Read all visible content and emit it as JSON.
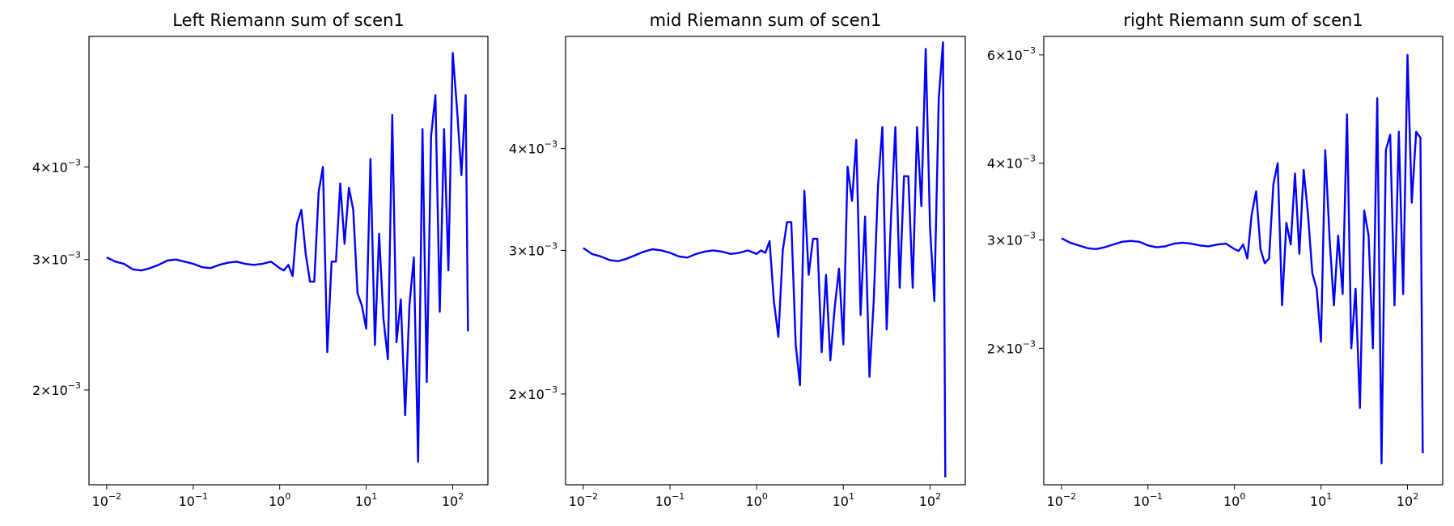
{
  "chart_data": [
    {
      "type": "line",
      "title": "Left Riemann sum of scen1",
      "color": "blue",
      "xscale": "log",
      "yscale": "log",
      "xlim": [
        0.00625,
        255
      ],
      "ylim": [
        0.00149,
        0.006
      ],
      "xticks": [
        {
          "value": 0.01,
          "label": "10",
          "exponent": "−2"
        },
        {
          "value": 0.1,
          "label": "10",
          "exponent": "−1"
        },
        {
          "value": 1,
          "label": "10",
          "exponent": "0"
        },
        {
          "value": 10,
          "label": "10",
          "exponent": "1"
        },
        {
          "value": 100,
          "label": "10",
          "exponent": "2"
        }
      ],
      "yticks": [
        {
          "value": 0.002,
          "label": "2×10",
          "exponent": "−3"
        },
        {
          "value": 0.003,
          "label": "3×10",
          "exponent": "−3"
        },
        {
          "value": 0.004,
          "label": "4×10",
          "exponent": "−3"
        }
      ],
      "x": [
        0.01,
        0.0126,
        0.0158,
        0.02,
        0.0251,
        0.0316,
        0.0398,
        0.0501,
        0.0631,
        0.0794,
        0.1,
        0.126,
        0.158,
        0.2,
        0.251,
        0.316,
        0.398,
        0.501,
        0.631,
        0.794,
        1.0,
        1.12,
        1.26,
        1.41,
        1.58,
        1.78,
        2.0,
        2.24,
        2.51,
        2.82,
        3.16,
        3.55,
        3.98,
        4.47,
        5.01,
        5.62,
        6.31,
        7.08,
        7.94,
        8.91,
        10,
        11.2,
        12.6,
        14.1,
        15.8,
        17.8,
        20,
        22.4,
        25.1,
        28.2,
        31.6,
        35.5,
        39.8,
        44.7,
        50.1,
        56.2,
        63.1,
        70.8,
        79.4,
        89.1,
        100,
        112,
        126,
        141,
        150
      ],
      "values": [
        0.00302,
        0.00298,
        0.00296,
        0.00291,
        0.0029,
        0.00292,
        0.00295,
        0.00299,
        0.003,
        0.00298,
        0.00296,
        0.00293,
        0.00292,
        0.00295,
        0.00297,
        0.00298,
        0.00296,
        0.00295,
        0.00296,
        0.00298,
        0.00292,
        0.0029,
        0.00295,
        0.00285,
        0.00335,
        0.0035,
        0.00305,
        0.0028,
        0.0028,
        0.0037,
        0.004,
        0.00225,
        0.00298,
        0.00298,
        0.0038,
        0.00315,
        0.00375,
        0.0035,
        0.0027,
        0.0026,
        0.00242,
        0.0041,
        0.0023,
        0.00325,
        0.0025,
        0.0022,
        0.0047,
        0.00232,
        0.00265,
        0.00185,
        0.0026,
        0.00302,
        0.0016,
        0.0045,
        0.00205,
        0.0044,
        0.005,
        0.00255,
        0.0045,
        0.0029,
        0.0057,
        0.0048,
        0.0039,
        0.005,
        0.0024
      ]
    },
    {
      "type": "line",
      "title": "mid Riemann sum of scen1",
      "color": "blue",
      "xscale": "log",
      "yscale": "log",
      "xlim": [
        0.00625,
        255
      ],
      "ylim": [
        0.001548,
        0.00549
      ],
      "xticks": [
        {
          "value": 0.01,
          "label": "10",
          "exponent": "−2"
        },
        {
          "value": 0.1,
          "label": "10",
          "exponent": "−1"
        },
        {
          "value": 1,
          "label": "10",
          "exponent": "0"
        },
        {
          "value": 10,
          "label": "10",
          "exponent": "1"
        },
        {
          "value": 100,
          "label": "10",
          "exponent": "2"
        }
      ],
      "yticks": [
        {
          "value": 0.002,
          "label": "2×10",
          "exponent": "−3"
        },
        {
          "value": 0.003,
          "label": "3×10",
          "exponent": "−3"
        },
        {
          "value": 0.004,
          "label": "4×10",
          "exponent": "−3"
        }
      ],
      "x": [
        0.01,
        0.0126,
        0.0158,
        0.02,
        0.0251,
        0.0316,
        0.0398,
        0.0501,
        0.0631,
        0.0794,
        0.1,
        0.126,
        0.158,
        0.2,
        0.251,
        0.316,
        0.398,
        0.501,
        0.631,
        0.794,
        1.0,
        1.12,
        1.26,
        1.41,
        1.58,
        1.78,
        2.0,
        2.24,
        2.51,
        2.82,
        3.16,
        3.55,
        3.98,
        4.47,
        5.01,
        5.62,
        6.31,
        7.08,
        7.94,
        8.91,
        10,
        11.2,
        12.6,
        14.1,
        15.8,
        17.8,
        20,
        22.4,
        25.1,
        28.2,
        31.6,
        35.5,
        39.8,
        44.7,
        50.1,
        56.2,
        63.1,
        70.8,
        79.4,
        89.1,
        100,
        112,
        126,
        141,
        150
      ],
      "values": [
        0.00302,
        0.00297,
        0.00295,
        0.00292,
        0.00291,
        0.00293,
        0.00296,
        0.00299,
        0.00301,
        0.003,
        0.00298,
        0.00295,
        0.00294,
        0.00297,
        0.00299,
        0.003,
        0.00299,
        0.00297,
        0.00298,
        0.003,
        0.00297,
        0.003,
        0.00298,
        0.00308,
        0.0026,
        0.00235,
        0.003,
        0.00325,
        0.00325,
        0.0023,
        0.00205,
        0.00355,
        0.0028,
        0.0031,
        0.0031,
        0.00225,
        0.0028,
        0.0022,
        0.00255,
        0.00285,
        0.0023,
        0.0038,
        0.00345,
        0.0041,
        0.0025,
        0.0033,
        0.0021,
        0.0026,
        0.0036,
        0.00425,
        0.0024,
        0.0033,
        0.00425,
        0.0027,
        0.0037,
        0.0037,
        0.0027,
        0.00425,
        0.0034,
        0.0053,
        0.0032,
        0.0026,
        0.0046,
        0.0054,
        0.00158
      ]
    },
    {
      "type": "line",
      "title": "right Riemann sum of scen1",
      "color": "blue",
      "xscale": "log",
      "yscale": "log",
      "xlim": [
        0.00625,
        255
      ],
      "ylim": [
        0.0012,
        0.00643
      ],
      "xticks": [
        {
          "value": 0.01,
          "label": "10",
          "exponent": "−2"
        },
        {
          "value": 0.1,
          "label": "10",
          "exponent": "−1"
        },
        {
          "value": 1,
          "label": "10",
          "exponent": "0"
        },
        {
          "value": 10,
          "label": "10",
          "exponent": "1"
        },
        {
          "value": 100,
          "label": "10",
          "exponent": "2"
        }
      ],
      "yticks": [
        {
          "value": 0.002,
          "label": "2×10",
          "exponent": "−3"
        },
        {
          "value": 0.003,
          "label": "3×10",
          "exponent": "−3"
        },
        {
          "value": 0.004,
          "label": "4×10",
          "exponent": "−3"
        },
        {
          "value": 0.006,
          "label": "6×10",
          "exponent": "−3"
        }
      ],
      "x": [
        0.01,
        0.0126,
        0.0158,
        0.02,
        0.0251,
        0.0316,
        0.0398,
        0.0501,
        0.0631,
        0.0794,
        0.1,
        0.126,
        0.158,
        0.2,
        0.251,
        0.316,
        0.398,
        0.501,
        0.631,
        0.794,
        1.0,
        1.12,
        1.26,
        1.41,
        1.58,
        1.78,
        2.0,
        2.24,
        2.51,
        2.82,
        3.16,
        3.55,
        3.98,
        4.47,
        5.01,
        5.62,
        6.31,
        7.08,
        7.94,
        8.91,
        10,
        11.2,
        12.6,
        14.1,
        15.8,
        17.8,
        20,
        22.4,
        25.1,
        28.2,
        31.6,
        35.5,
        39.8,
        44.7,
        50.1,
        56.2,
        63.1,
        70.8,
        79.4,
        89.1,
        100,
        112,
        126,
        141,
        150
      ],
      "values": [
        0.00302,
        0.00297,
        0.00294,
        0.00291,
        0.0029,
        0.00292,
        0.00295,
        0.00298,
        0.00299,
        0.00298,
        0.00294,
        0.00292,
        0.00293,
        0.00296,
        0.00297,
        0.00296,
        0.00294,
        0.00293,
        0.00295,
        0.00296,
        0.0029,
        0.00288,
        0.00295,
        0.0028,
        0.0033,
        0.0036,
        0.0029,
        0.00275,
        0.0028,
        0.0037,
        0.004,
        0.00235,
        0.0032,
        0.00295,
        0.00385,
        0.00285,
        0.0039,
        0.0033,
        0.00265,
        0.0025,
        0.00205,
        0.0042,
        0.003,
        0.00235,
        0.00305,
        0.00245,
        0.0048,
        0.002,
        0.0025,
        0.0016,
        0.00335,
        0.00305,
        0.002,
        0.0051,
        0.0013,
        0.0042,
        0.00445,
        0.00235,
        0.0045,
        0.00245,
        0.006,
        0.00345,
        0.0045,
        0.0044,
        0.00135
      ]
    }
  ]
}
